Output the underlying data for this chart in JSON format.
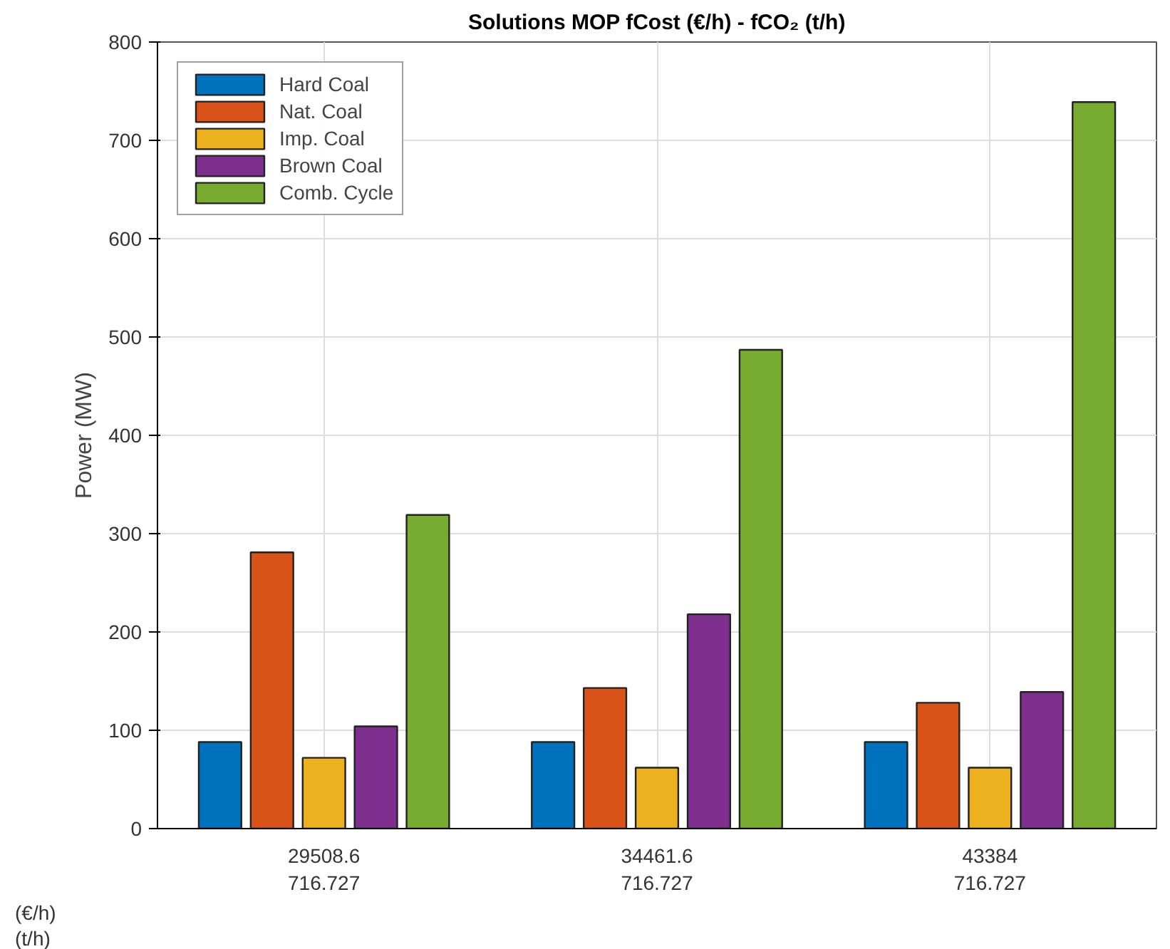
{
  "chart_data": {
    "type": "bar",
    "title": "Solutions MOP fCost (€/h) - fCO₂ (t/h)",
    "ylabel": "Power (MW)",
    "categories": [
      "29508.6\n716.727",
      "34461.6\n716.727",
      "43384\n716.727"
    ],
    "series": [
      {
        "name": "Hard Coal",
        "color": "#0072bd",
        "values": [
          88,
          88,
          88
        ]
      },
      {
        "name": "Nat. Coal",
        "color": "#d95319",
        "values": [
          281,
          143,
          128
        ]
      },
      {
        "name": "Imp. Coal",
        "color": "#edb120",
        "values": [
          72,
          62,
          62
        ]
      },
      {
        "name": "Brown Coal",
        "color": "#7e2f8e",
        "values": [
          104,
          218,
          139
        ]
      },
      {
        "name": "Comb. Cycle",
        "color": "#77ac30",
        "values": [
          319,
          487,
          739
        ]
      }
    ],
    "annotations": [
      "(€/h)",
      "(t/h)"
    ],
    "ylim": [
      0,
      800
    ],
    "yticks": [
      0,
      100,
      200,
      300,
      400,
      500,
      600,
      700,
      800
    ],
    "grid": true,
    "legend": "top left"
  }
}
